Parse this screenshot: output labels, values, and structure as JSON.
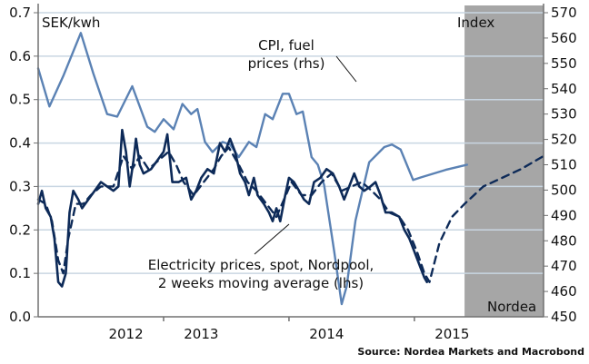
{
  "chart_data": {
    "type": "line",
    "title": "",
    "left_axis": {
      "label": "SEK/kwh",
      "ylim": [
        0.0,
        0.7
      ],
      "ticks": [
        "0.0",
        "0.1",
        "0.2",
        "0.3",
        "0.4",
        "0.5",
        "0.6",
        "0.7"
      ],
      "tick_values": [
        0.0,
        0.1,
        0.2,
        0.3,
        0.4,
        0.5,
        0.6,
        0.7
      ]
    },
    "right_axis": {
      "label": "Index",
      "ylim": [
        450,
        570
      ],
      "ticks": [
        "450",
        "460",
        "470",
        "480",
        "490",
        "500",
        "510",
        "520",
        "530",
        "540",
        "550",
        "560",
        "570"
      ],
      "tick_values": [
        450,
        460,
        470,
        480,
        490,
        500,
        510,
        520,
        530,
        540,
        550,
        560,
        570
      ]
    },
    "x_axis": {
      "xlim": [
        2011.6,
        2015.63
      ],
      "year_labels": [
        "2012",
        "2013",
        "2014",
        "2015"
      ],
      "year_label_positions": [
        2012.3,
        2012.9,
        2013.9,
        2014.9
      ],
      "tick_positions": [
        2012.6,
        2013.6,
        2014.6
      ]
    },
    "grid": true,
    "forecast_region": {
      "start": 2015.0,
      "end": 2015.63,
      "label": "Nordea",
      "color": "#a6a6a6"
    },
    "series": [
      {
        "name": "CPI, fuel prices (rhs)",
        "axis": "right",
        "style": "solid",
        "color": "#5b82b4",
        "points": [
          [
            2011.6,
            548
          ],
          [
            2011.69,
            533
          ],
          [
            2011.8,
            545
          ],
          [
            2011.94,
            562
          ],
          [
            2012.04,
            546
          ],
          [
            2012.15,
            530
          ],
          [
            2012.23,
            529
          ],
          [
            2012.35,
            541
          ],
          [
            2012.47,
            525
          ],
          [
            2012.53,
            523
          ],
          [
            2012.6,
            528
          ],
          [
            2012.68,
            524
          ],
          [
            2012.75,
            534
          ],
          [
            2012.82,
            530
          ],
          [
            2012.87,
            532
          ],
          [
            2012.93,
            519
          ],
          [
            2012.99,
            515
          ],
          [
            2013.07,
            519
          ],
          [
            2013.13,
            518
          ],
          [
            2013.2,
            513
          ],
          [
            2013.28,
            519
          ],
          [
            2013.34,
            517
          ],
          [
            2013.41,
            530
          ],
          [
            2013.47,
            528
          ],
          [
            2013.55,
            538
          ],
          [
            2013.6,
            538
          ],
          [
            2013.66,
            530
          ],
          [
            2013.71,
            531
          ],
          [
            2013.78,
            513
          ],
          [
            2013.83,
            510
          ],
          [
            2013.88,
            502
          ],
          [
            2013.96,
            476
          ],
          [
            2014.02,
            455
          ],
          [
            2014.06,
            462
          ],
          [
            2014.13,
            488
          ],
          [
            2014.24,
            511
          ],
          [
            2014.36,
            517
          ],
          [
            2014.42,
            518
          ],
          [
            2014.49,
            516
          ],
          [
            2014.54,
            510
          ],
          [
            2014.59,
            504
          ],
          [
            2014.65,
            505
          ],
          [
            2014.85,
            508
          ],
          [
            2015.02,
            510
          ]
        ]
      },
      {
        "name": "Electricity prices, spot, Nordpool (lhs)",
        "axis": "left",
        "style": "solid",
        "color": "#0d2a58",
        "points": [
          [
            2011.6,
            0.26
          ],
          [
            2011.63,
            0.29
          ],
          [
            2011.66,
            0.25
          ],
          [
            2011.7,
            0.23
          ],
          [
            2011.73,
            0.18
          ],
          [
            2011.76,
            0.08
          ],
          [
            2011.79,
            0.07
          ],
          [
            2011.82,
            0.1
          ],
          [
            2011.85,
            0.24
          ],
          [
            2011.88,
            0.29
          ],
          [
            2011.92,
            0.27
          ],
          [
            2011.95,
            0.25
          ],
          [
            2012.0,
            0.27
          ],
          [
            2012.05,
            0.29
          ],
          [
            2012.1,
            0.31
          ],
          [
            2012.15,
            0.3
          ],
          [
            2012.2,
            0.29
          ],
          [
            2012.24,
            0.3
          ],
          [
            2012.27,
            0.43
          ],
          [
            2012.3,
            0.38
          ],
          [
            2012.33,
            0.3
          ],
          [
            2012.36,
            0.36
          ],
          [
            2012.38,
            0.41
          ],
          [
            2012.41,
            0.35
          ],
          [
            2012.44,
            0.33
          ],
          [
            2012.5,
            0.34
          ],
          [
            2012.55,
            0.36
          ],
          [
            2012.6,
            0.38
          ],
          [
            2012.63,
            0.42
          ],
          [
            2012.67,
            0.31
          ],
          [
            2012.72,
            0.31
          ],
          [
            2012.78,
            0.32
          ],
          [
            2012.82,
            0.27
          ],
          [
            2012.86,
            0.29
          ],
          [
            2012.9,
            0.32
          ],
          [
            2012.95,
            0.34
          ],
          [
            2013.0,
            0.33
          ],
          [
            2013.05,
            0.4
          ],
          [
            2013.09,
            0.38
          ],
          [
            2013.13,
            0.41
          ],
          [
            2013.17,
            0.38
          ],
          [
            2013.21,
            0.33
          ],
          [
            2013.25,
            0.31
          ],
          [
            2013.28,
            0.28
          ],
          [
            2013.32,
            0.32
          ],
          [
            2013.35,
            0.28
          ],
          [
            2013.4,
            0.26
          ],
          [
            2013.44,
            0.24
          ],
          [
            2013.47,
            0.22
          ],
          [
            2013.5,
            0.25
          ],
          [
            2013.53,
            0.22
          ],
          [
            2013.57,
            0.28
          ],
          [
            2013.6,
            0.32
          ],
          [
            2013.64,
            0.31
          ],
          [
            2013.68,
            0.29
          ],
          [
            2013.72,
            0.27
          ],
          [
            2013.76,
            0.26
          ],
          [
            2013.8,
            0.31
          ],
          [
            2013.85,
            0.32
          ],
          [
            2013.9,
            0.34
          ],
          [
            2013.95,
            0.33
          ],
          [
            2014.0,
            0.3
          ],
          [
            2014.04,
            0.27
          ],
          [
            2014.08,
            0.3
          ],
          [
            2014.12,
            0.33
          ],
          [
            2014.16,
            0.3
          ],
          [
            2014.2,
            0.29
          ],
          [
            2014.25,
            0.3
          ],
          [
            2014.29,
            0.31
          ],
          [
            2014.33,
            0.28
          ],
          [
            2014.37,
            0.24
          ],
          [
            2014.42,
            0.24
          ],
          [
            2014.48,
            0.23
          ],
          [
            2014.52,
            0.2
          ],
          [
            2014.56,
            0.18
          ],
          [
            2014.6,
            0.15
          ],
          [
            2014.64,
            0.12
          ],
          [
            2014.68,
            0.09
          ],
          [
            2014.7,
            0.08
          ]
        ]
      },
      {
        "name": "2 weeks moving average (lhs)",
        "axis": "left",
        "style": "dashed",
        "color": "#0d2a58",
        "points": [
          [
            2011.6,
            0.27
          ],
          [
            2011.66,
            0.26
          ],
          [
            2011.71,
            0.22
          ],
          [
            2011.76,
            0.13
          ],
          [
            2011.8,
            0.1
          ],
          [
            2011.84,
            0.18
          ],
          [
            2011.9,
            0.26
          ],
          [
            2011.96,
            0.26
          ],
          [
            2012.02,
            0.28
          ],
          [
            2012.1,
            0.3
          ],
          [
            2012.2,
            0.3
          ],
          [
            2012.28,
            0.37
          ],
          [
            2012.35,
            0.34
          ],
          [
            2012.41,
            0.37
          ],
          [
            2012.48,
            0.34
          ],
          [
            2012.56,
            0.36
          ],
          [
            2012.64,
            0.38
          ],
          [
            2012.7,
            0.35
          ],
          [
            2012.76,
            0.31
          ],
          [
            2012.84,
            0.28
          ],
          [
            2012.92,
            0.31
          ],
          [
            2013.0,
            0.34
          ],
          [
            2013.06,
            0.37
          ],
          [
            2013.12,
            0.39
          ],
          [
            2013.2,
            0.35
          ],
          [
            2013.27,
            0.31
          ],
          [
            2013.34,
            0.29
          ],
          [
            2013.42,
            0.26
          ],
          [
            2013.5,
            0.23
          ],
          [
            2013.56,
            0.27
          ],
          [
            2013.62,
            0.31
          ],
          [
            2013.7,
            0.28
          ],
          [
            2013.78,
            0.28
          ],
          [
            2013.86,
            0.31
          ],
          [
            2013.94,
            0.33
          ],
          [
            2014.02,
            0.29
          ],
          [
            2014.1,
            0.3
          ],
          [
            2014.18,
            0.31
          ],
          [
            2014.26,
            0.29
          ],
          [
            2014.33,
            0.27
          ],
          [
            2014.4,
            0.24
          ],
          [
            2014.48,
            0.23
          ],
          [
            2014.55,
            0.2
          ],
          [
            2014.62,
            0.15
          ],
          [
            2014.68,
            0.1
          ],
          [
            2014.72,
            0.08
          ],
          [
            2014.8,
            0.17
          ],
          [
            2014.9,
            0.23
          ],
          [
            2015.0,
            0.26
          ],
          [
            2015.15,
            0.3
          ],
          [
            2015.3,
            0.32
          ],
          [
            2015.45,
            0.34
          ],
          [
            2015.63,
            0.37
          ]
        ]
      }
    ],
    "annotations": [
      {
        "text_lines": [
          "CPI, fuel",
          "prices (rhs)"
        ],
        "target_series": "CPI, fuel prices (rhs)"
      },
      {
        "text_lines": [
          "Electricity prices, spot, Nordpool,",
          "2 weeks moving average (lhs)"
        ],
        "target_series": "Electricity prices, spot, Nordpool (lhs)"
      }
    ],
    "source": "Source: Nordea Markets and Macrobond"
  }
}
